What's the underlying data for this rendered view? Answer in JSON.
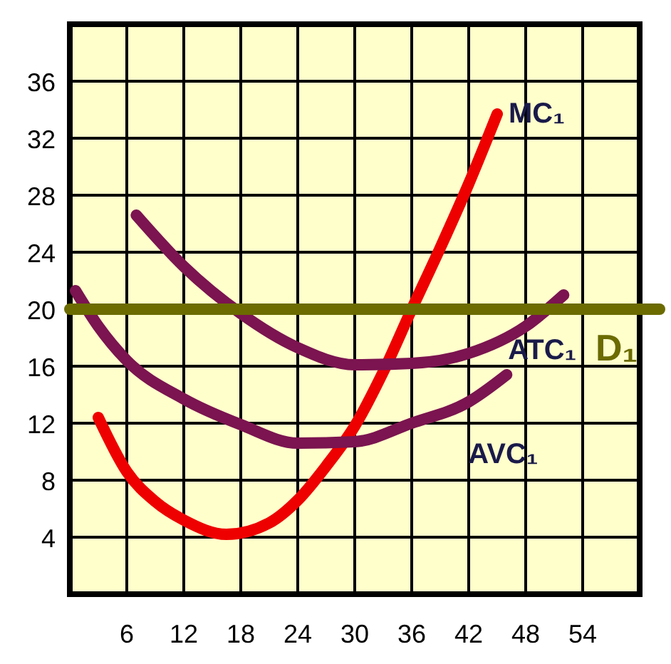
{
  "chart_data": {
    "type": "line",
    "xlim": [
      0,
      60
    ],
    "ylim": [
      0,
      40
    ],
    "xticks": [
      6,
      12,
      18,
      24,
      30,
      36,
      42,
      48,
      54
    ],
    "yticks": [
      4,
      8,
      12,
      16,
      20,
      24,
      28,
      32,
      36
    ],
    "grid": true,
    "marker": "none",
    "line_style": "solid",
    "series": [
      {
        "name": "MC₁",
        "color": "#ee0000",
        "x": [
          3,
          6,
          9,
          12,
          16.5,
          21,
          24,
          27,
          30,
          33,
          36,
          39,
          42,
          45
        ],
        "values": [
          12.4,
          8.6,
          6.5,
          5.2,
          4.2,
          5,
          6.6,
          9,
          11.8,
          15.6,
          20,
          24.3,
          28.8,
          33.7
        ]
      },
      {
        "name": "ATC₁",
        "color": "#7b1450",
        "x": [
          7,
          12,
          18,
          24,
          30,
          36,
          42,
          48,
          52
        ],
        "values": [
          26.6,
          23,
          19.7,
          17.3,
          16.1,
          16.2,
          16.9,
          18.8,
          21
        ]
      },
      {
        "name": "AVC₁",
        "color": "#7b1450",
        "x": [
          0.6,
          3,
          6,
          12,
          18,
          24,
          30,
          36,
          42,
          46
        ],
        "values": [
          21.3,
          18.8,
          16.4,
          13.7,
          11.9,
          10.6,
          10.7,
          12,
          13.5,
          15.4
        ]
      }
    ],
    "ref_lines": [
      {
        "axis": "y",
        "value": 20,
        "label": "D₁",
        "color": "#6b6b00"
      }
    ]
  }
}
